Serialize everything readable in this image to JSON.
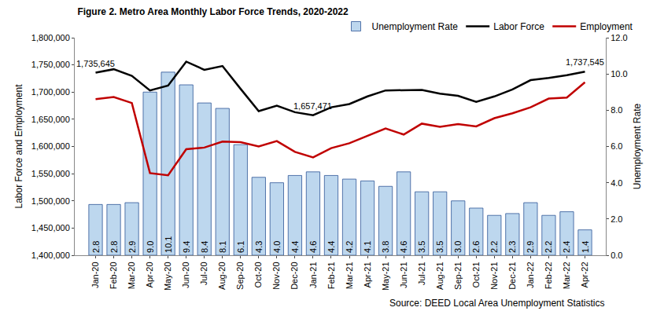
{
  "chart_data": {
    "type": "bar",
    "title": "Figure 2. Metro Area Monthly Labor Force Trends, 2020-2022",
    "y_label": "Labor Force and Employment",
    "y2_label": "Unemployment Rate",
    "source": "Source: DEED Local Area Unemployment Statistics",
    "categories": [
      "Jan-20",
      "Feb-20",
      "Mar-20",
      "Apr-20",
      "May-20",
      "Jun-20",
      "Jul-20",
      "Aug-20",
      "Sep-20",
      "Oct-20",
      "Nov-20",
      "Dec-20",
      "Jan-21",
      "Feb-21",
      "Mar-21",
      "Apr-21",
      "May-21",
      "Jun-21",
      "Jul-21",
      "Aug-21",
      "Sep-21",
      "Oct-21",
      "Nov-21",
      "Dec-21",
      "Jan-22",
      "Feb-22",
      "Mar-22",
      "Apr-22"
    ],
    "series": [
      {
        "name": "Unemployment Rate",
        "type": "bar",
        "axis": "y2",
        "color": "#bdd7ee",
        "values": [
          2.8,
          2.8,
          2.9,
          9.0,
          10.1,
          9.4,
          8.4,
          8.1,
          6.1,
          4.3,
          4.0,
          4.4,
          4.6,
          4.4,
          4.2,
          4.1,
          3.8,
          4.6,
          3.5,
          3.5,
          3.0,
          2.6,
          2.2,
          2.3,
          2.9,
          2.2,
          2.4,
          1.4
        ],
        "value_labels": [
          "2.8",
          "2.8",
          "2.9",
          "9.0",
          "10.1",
          "9.4",
          "8.4",
          "8.1",
          "6.1",
          "4.3",
          "4.0",
          "4.4",
          "4.6",
          "4.4",
          "4.2",
          "4.1",
          "3.8",
          "4.6",
          "3.5",
          "3.5",
          "3.0",
          "2.6",
          "2.2",
          "2.3",
          "2.9",
          "2.2",
          "2.4",
          "1.4"
        ]
      },
      {
        "name": "Labor Force",
        "type": "line",
        "color": "#000000",
        "values": [
          1735645,
          1742000,
          1730000,
          1703000,
          1712000,
          1756000,
          1741000,
          1748000,
          1706000,
          1665000,
          1675000,
          1663000,
          1657471,
          1672000,
          1678000,
          1692000,
          1703000,
          1704000,
          1704000,
          1697000,
          1693000,
          1682000,
          1692000,
          1705000,
          1722000,
          1726000,
          1731000,
          1737545
        ]
      },
      {
        "name": "Employment",
        "type": "line",
        "color": "#c00000",
        "values": [
          1687000,
          1691000,
          1680000,
          1551000,
          1547000,
          1595000,
          1598000,
          1609000,
          1608000,
          1600000,
          1610000,
          1590000,
          1580000,
          1597000,
          1606000,
          1619000,
          1633000,
          1622000,
          1642000,
          1636000,
          1641000,
          1637000,
          1652000,
          1661000,
          1672000,
          1688000,
          1690000,
          1718000
        ]
      }
    ],
    "annotations": [
      {
        "category": "Jan-20",
        "value": 1735645,
        "text": "1,735,645"
      },
      {
        "category": "Jan-21",
        "value": 1657471,
        "text": "1,657,471"
      },
      {
        "category": "Apr-22",
        "value": 1737545,
        "text": "1,737,545"
      }
    ],
    "ylim": [
      1400000,
      1800000
    ],
    "yticks": [
      {
        "value": 1400000,
        "label": "1,400,000"
      },
      {
        "value": 1450000,
        "label": "1,450,000"
      },
      {
        "value": 1500000,
        "label": "1,500,000"
      },
      {
        "value": 1550000,
        "label": "1,550,000"
      },
      {
        "value": 1600000,
        "label": "1,600,000"
      },
      {
        "value": 1650000,
        "label": "1,650,000"
      },
      {
        "value": 1700000,
        "label": "1,700,000"
      },
      {
        "value": 1750000,
        "label": "1,750,000"
      },
      {
        "value": 1800000,
        "label": "1,800,000"
      }
    ],
    "y2lim": [
      0,
      12
    ],
    "y2ticks": [
      {
        "value": 0,
        "label": "0.0"
      },
      {
        "value": 2,
        "label": "2.0"
      },
      {
        "value": 4,
        "label": "4.0"
      },
      {
        "value": 6,
        "label": "6.0"
      },
      {
        "value": 8,
        "label": "8.0"
      },
      {
        "value": 10,
        "label": "10.0"
      },
      {
        "value": 12,
        "label": "12.0"
      }
    ],
    "grid": false,
    "legend": "top",
    "data_labels": true
  }
}
